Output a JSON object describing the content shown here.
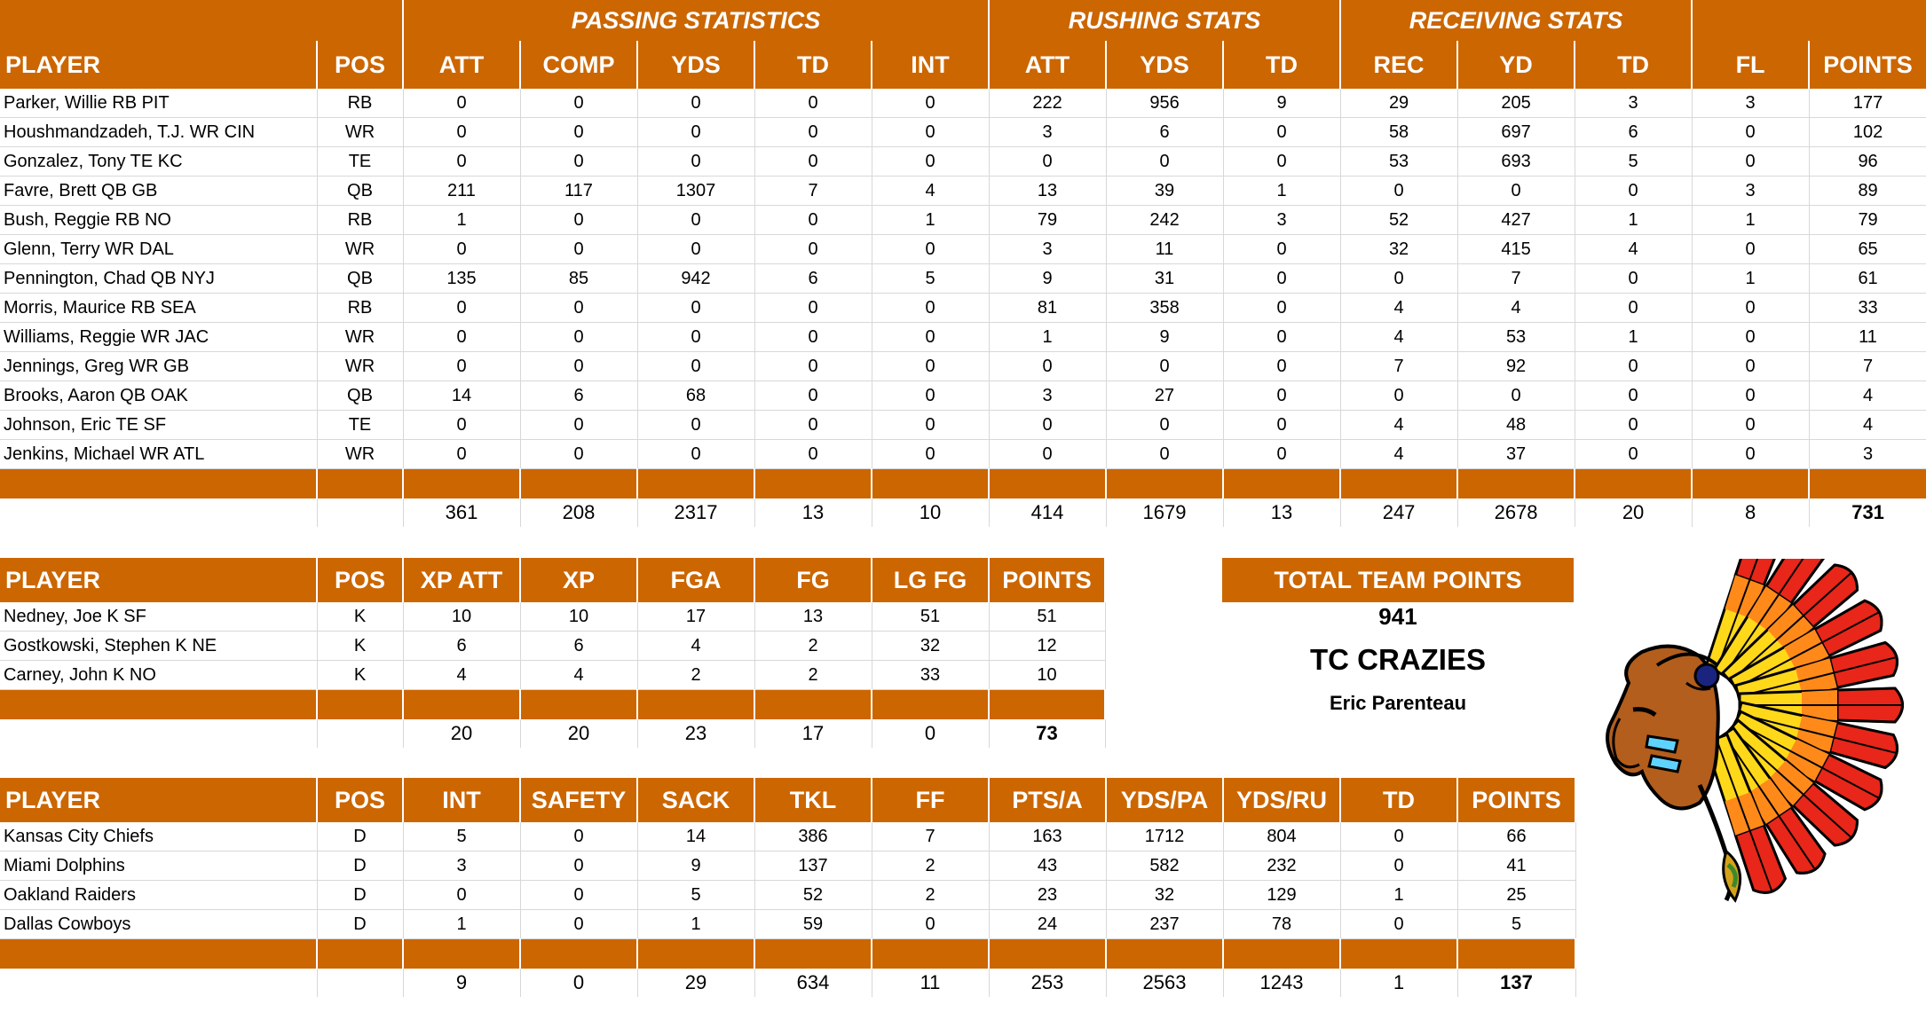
{
  "offense": {
    "groups": {
      "passing": "PASSING STATISTICS",
      "rushing": "RUSHING STATS",
      "receiving": "RECEIVING STATS"
    },
    "headers": [
      "PLAYER",
      "POS",
      "ATT",
      "COMP",
      "YDS",
      "TD",
      "INT",
      "ATT",
      "YDS",
      "TD",
      "REC",
      "YD",
      "TD",
      "FL",
      "POINTS"
    ],
    "rows": [
      [
        "Parker, Willie RB PIT",
        "RB",
        "0",
        "0",
        "0",
        "0",
        "0",
        "222",
        "956",
        "9",
        "29",
        "205",
        "3",
        "3",
        "177"
      ],
      [
        "Houshmandzadeh, T.J. WR CIN",
        "WR",
        "0",
        "0",
        "0",
        "0",
        "0",
        "3",
        "6",
        "0",
        "58",
        "697",
        "6",
        "0",
        "102"
      ],
      [
        "Gonzalez, Tony TE KC",
        "TE",
        "0",
        "0",
        "0",
        "0",
        "0",
        "0",
        "0",
        "0",
        "53",
        "693",
        "5",
        "0",
        "96"
      ],
      [
        "Favre, Brett QB GB",
        "QB",
        "211",
        "117",
        "1307",
        "7",
        "4",
        "13",
        "39",
        "1",
        "0",
        "0",
        "0",
        "3",
        "89"
      ],
      [
        "Bush, Reggie RB NO",
        "RB",
        "1",
        "0",
        "0",
        "0",
        "1",
        "79",
        "242",
        "3",
        "52",
        "427",
        "1",
        "1",
        "79"
      ],
      [
        "Glenn, Terry WR DAL",
        "WR",
        "0",
        "0",
        "0",
        "0",
        "0",
        "3",
        "11",
        "0",
        "32",
        "415",
        "4",
        "0",
        "65"
      ],
      [
        "Pennington, Chad QB NYJ",
        "QB",
        "135",
        "85",
        "942",
        "6",
        "5",
        "9",
        "31",
        "0",
        "0",
        "7",
        "0",
        "1",
        "61"
      ],
      [
        "Morris, Maurice RB SEA",
        "RB",
        "0",
        "0",
        "0",
        "0",
        "0",
        "81",
        "358",
        "0",
        "4",
        "4",
        "0",
        "0",
        "33"
      ],
      [
        "Williams, Reggie WR JAC",
        "WR",
        "0",
        "0",
        "0",
        "0",
        "0",
        "1",
        "9",
        "0",
        "4",
        "53",
        "1",
        "0",
        "11"
      ],
      [
        "Jennings, Greg WR GB",
        "WR",
        "0",
        "0",
        "0",
        "0",
        "0",
        "0",
        "0",
        "0",
        "7",
        "92",
        "0",
        "0",
        "7"
      ],
      [
        "Brooks, Aaron QB OAK",
        "QB",
        "14",
        "6",
        "68",
        "0",
        "0",
        "3",
        "27",
        "0",
        "0",
        "0",
        "0",
        "0",
        "4"
      ],
      [
        "Johnson, Eric TE SF",
        "TE",
        "0",
        "0",
        "0",
        "0",
        "0",
        "0",
        "0",
        "0",
        "4",
        "48",
        "0",
        "0",
        "4"
      ],
      [
        "Jenkins, Michael WR ATL",
        "WR",
        "0",
        "0",
        "0",
        "0",
        "0",
        "0",
        "0",
        "0",
        "4",
        "37",
        "0",
        "0",
        "3"
      ]
    ],
    "totals": [
      "",
      "",
      "361",
      "208",
      "2317",
      "13",
      "10",
      "414",
      "1679",
      "13",
      "247",
      "2678",
      "20",
      "8",
      "731"
    ]
  },
  "kickers": {
    "headers": [
      "PLAYER",
      "POS",
      "XP ATT",
      "XP",
      "FGA",
      "FG",
      "LG FG",
      "POINTS"
    ],
    "rows": [
      [
        "Nedney, Joe K SF",
        "K",
        "10",
        "10",
        "17",
        "13",
        "51",
        "51"
      ],
      [
        "Gostkowski, Stephen K NE",
        "K",
        "6",
        "6",
        "4",
        "2",
        "32",
        "12"
      ],
      [
        "Carney, John K NO",
        "K",
        "4",
        "4",
        "2",
        "2",
        "33",
        "10"
      ]
    ],
    "totals": [
      "",
      "",
      "20",
      "20",
      "23",
      "17",
      "0",
      "73"
    ]
  },
  "defense": {
    "headers": [
      "PLAYER",
      "POS",
      "INT",
      "SAFETY",
      "SACK",
      "TKL",
      "FF",
      "PTS/A",
      "YDS/PA",
      "YDS/RU",
      "TD",
      "POINTS"
    ],
    "rows": [
      [
        "Kansas City Chiefs",
        "D",
        "5",
        "0",
        "14",
        "386",
        "7",
        "163",
        "1712",
        "804",
        "0",
        "66"
      ],
      [
        "Miami Dolphins",
        "D",
        "3",
        "0",
        "9",
        "137",
        "2",
        "43",
        "582",
        "232",
        "0",
        "41"
      ],
      [
        "Oakland Raiders",
        "D",
        "0",
        "0",
        "5",
        "52",
        "2",
        "23",
        "32",
        "129",
        "1",
        "25"
      ],
      [
        "Dallas Cowboys",
        "D",
        "1",
        "0",
        "1",
        "59",
        "0",
        "24",
        "237",
        "78",
        "0",
        "5"
      ]
    ],
    "totals": [
      "",
      "",
      "9",
      "0",
      "29",
      "634",
      "11",
      "253",
      "2563",
      "1243",
      "1",
      "137"
    ]
  },
  "team": {
    "header": "TOTAL TEAM POINTS",
    "points": "941",
    "name": "TC CRAZIES",
    "owner": "Eric Parenteau"
  },
  "colors": {
    "header_bg": "#cc6600",
    "header_text": "#ffffff"
  },
  "logo_icon": "indian-chief-headdress-icon"
}
